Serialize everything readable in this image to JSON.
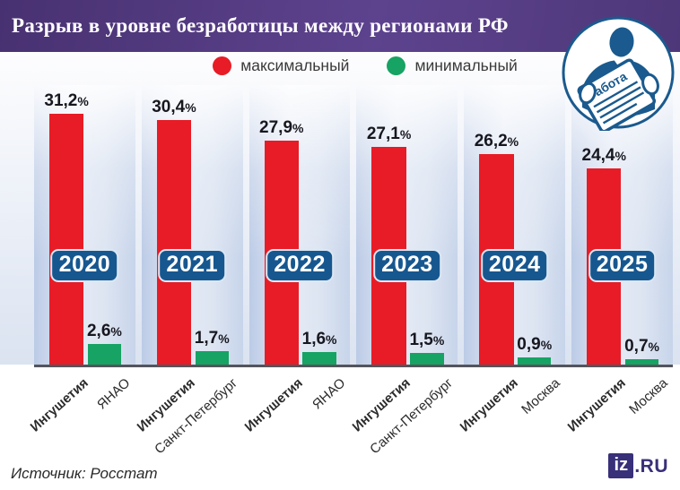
{
  "header": {
    "title": "Разрыв в уровне безработицы между регионами РФ",
    "badge_label": "Работа"
  },
  "legend": {
    "max_label": "максимальный",
    "min_label": "минимальный"
  },
  "chart_data": {
    "type": "bar",
    "title": "Разрыв в уровне безработицы между регионами РФ",
    "percent": "%",
    "ylim": [
      0,
      33
    ],
    "grid": false,
    "legend_position": "top",
    "categories": [
      "2020",
      "2021",
      "2022",
      "2023",
      "2024",
      "2025"
    ],
    "series": [
      {
        "name": "максимальный",
        "color": "#e81c26",
        "values": [
          31.2,
          30.4,
          27.9,
          27.1,
          26.2,
          24.4
        ],
        "regions": [
          "Ингушетия",
          "Ингушетия",
          "Ингушетия",
          "Ингушетия",
          "Ингушетия",
          "Ингушетия"
        ]
      },
      {
        "name": "минимальный",
        "color": "#16a363",
        "values": [
          2.6,
          1.7,
          1.6,
          1.5,
          0.9,
          0.7
        ],
        "regions": [
          "ЯНАО",
          "Санкт-Петербург",
          "ЯНАО",
          "Санкт-Петербург",
          "Москва",
          "Москва"
        ]
      }
    ],
    "groups": [
      {
        "year": "2020",
        "max_label": "31,2",
        "min_label": "2,6",
        "max_region": "Ингушетия",
        "min_region": "ЯНАО",
        "max_value": 31.2,
        "min_value": 2.6
      },
      {
        "year": "2021",
        "max_label": "30,4",
        "min_label": "1,7",
        "max_region": "Ингушетия",
        "min_region": "Санкт-Петербург",
        "max_value": 30.4,
        "min_value": 1.7
      },
      {
        "year": "2022",
        "max_label": "27,9",
        "min_label": "1,6",
        "max_region": "Ингушетия",
        "min_region": "ЯНАО",
        "max_value": 27.9,
        "min_value": 1.6
      },
      {
        "year": "2023",
        "max_label": "27,1",
        "min_label": "1,5",
        "max_region": "Ингушетия",
        "min_region": "Санкт-Петербург",
        "max_value": 27.1,
        "min_value": 1.5
      },
      {
        "year": "2024",
        "max_label": "26,2",
        "min_label": "0,9",
        "max_region": "Ингушетия",
        "min_region": "Москва",
        "max_value": 26.2,
        "min_value": 0.9
      },
      {
        "year": "2025",
        "max_label": "24,4",
        "min_label": "0,7",
        "max_region": "Ингушетия",
        "min_region": "Москва",
        "max_value": 24.4,
        "min_value": 0.7
      }
    ],
    "colors": {
      "max": "#e81c26",
      "min": "#16a363",
      "year_badge": "#17578f",
      "header": "#53397f",
      "logo": "#383079"
    }
  },
  "footer": {
    "source": "Источник: Росстат",
    "logo_iz": "iz",
    "logo_ru": ".RU"
  }
}
